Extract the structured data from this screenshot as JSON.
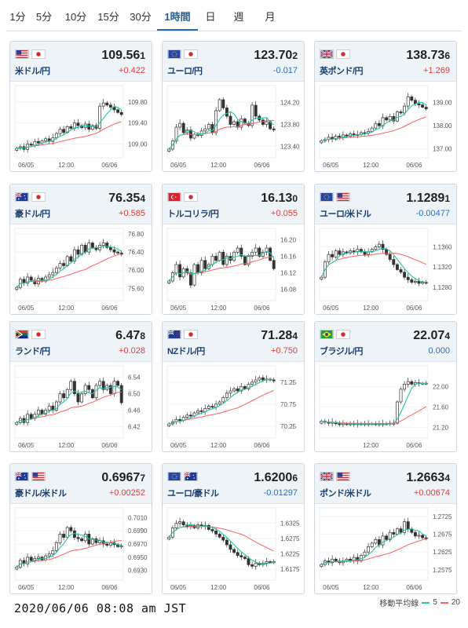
{
  "tabs": [
    {
      "label": "1分",
      "active": false
    },
    {
      "label": "5分",
      "active": false
    },
    {
      "label": "10分",
      "active": false
    },
    {
      "label": "15分",
      "active": false
    },
    {
      "label": "30分",
      "active": false
    },
    {
      "label": "1時間",
      "active": true
    },
    {
      "label": "日",
      "active": false
    },
    {
      "label": "週",
      "active": false
    },
    {
      "label": "月",
      "active": false
    }
  ],
  "colors": {
    "ma5": "#26c4a4",
    "ma20": "#ff5f5f",
    "up": "#e03c3c",
    "down": "#2a6ec4",
    "candle": "#333333"
  },
  "cards": [
    {
      "name": "米ドル/円",
      "flags": [
        "us",
        "jp"
      ],
      "rate_main": "109.56",
      "rate_last": "1",
      "change": "+0.422",
      "dir": "up",
      "chart_data": {
        "type": "candlestick",
        "x_labels": [
          "06/05",
          "12:00",
          "06/06"
        ],
        "y_ticks": [
          "109.80",
          "109.40",
          "109.00"
        ],
        "ylim": [
          108.8,
          110.05
        ],
        "close": [
          108.92,
          108.95,
          108.9,
          109.0,
          108.98,
          109.05,
          109.02,
          109.06,
          109.1,
          109.05,
          109.12,
          109.2,
          109.28,
          109.22,
          109.33,
          109.3,
          109.4,
          109.35,
          109.31,
          109.38,
          109.28,
          109.35,
          109.3,
          109.72,
          109.78,
          109.74,
          109.7,
          109.65,
          109.6,
          109.56
        ]
      }
    },
    {
      "name": "ユーロ/円",
      "flags": [
        "eu",
        "jp"
      ],
      "rate_main": "123.70",
      "rate_last": "2",
      "change": "-0.017",
      "dir": "down",
      "chart_data": {
        "type": "candlestick",
        "x_labels": [
          "06/05",
          "12:00",
          "06/06"
        ],
        "y_ticks": [
          "124.20",
          "123.80",
          "123.40"
        ],
        "ylim": [
          123.25,
          124.45
        ],
        "close": [
          123.35,
          123.5,
          123.75,
          123.82,
          123.65,
          123.7,
          123.55,
          123.62,
          123.6,
          123.68,
          123.72,
          123.8,
          123.65,
          124.05,
          124.25,
          124.1,
          123.95,
          123.8,
          123.85,
          123.75,
          123.9,
          123.82,
          123.78,
          124.15,
          123.95,
          123.88,
          123.8,
          123.85,
          123.72,
          123.7
        ]
      }
    },
    {
      "name": "英ポンド/円",
      "flags": [
        "gb",
        "jp"
      ],
      "rate_main": "138.73",
      "rate_last": "6",
      "change": "+1.269",
      "dir": "up",
      "chart_data": {
        "type": "candlestick",
        "x_labels": [
          "06/05",
          "12:00",
          "06/06"
        ],
        "y_ticks": [
          "139.00",
          "138.00",
          "137.00"
        ],
        "ylim": [
          136.75,
          139.6
        ],
        "close": [
          137.35,
          137.4,
          137.5,
          137.42,
          137.55,
          137.5,
          137.6,
          137.55,
          137.65,
          137.6,
          137.62,
          137.7,
          137.68,
          137.75,
          137.9,
          138.1,
          138.0,
          138.35,
          138.25,
          138.4,
          138.2,
          138.6,
          138.55,
          138.85,
          139.25,
          139.1,
          138.95,
          138.9,
          138.8,
          138.73
        ]
      }
    },
    {
      "name": "豪ドル/円",
      "flags": [
        "au",
        "jp"
      ],
      "rate_main": "76.35",
      "rate_last": "4",
      "change": "+0.585",
      "dir": "up",
      "chart_data": {
        "type": "candlestick",
        "x_labels": [
          "06/05",
          "12:00",
          "06/06"
        ],
        "y_ticks": [
          "76.80",
          "76.40",
          "76.00",
          "75.60"
        ],
        "ylim": [
          75.4,
          76.85
        ],
        "close": [
          75.62,
          75.8,
          75.72,
          75.85,
          75.78,
          75.7,
          75.82,
          75.76,
          75.85,
          75.9,
          75.95,
          76.05,
          76.15,
          76.1,
          76.3,
          76.2,
          76.45,
          76.35,
          76.55,
          76.4,
          76.6,
          76.5,
          76.45,
          76.55,
          76.6,
          76.5,
          76.45,
          76.4,
          76.38,
          76.35
        ]
      }
    },
    {
      "name": "トルコリラ/円",
      "flags": [
        "tr",
        "jp"
      ],
      "rate_main": "16.13",
      "rate_last": "0",
      "change": "+0.055",
      "dir": "up",
      "chart_data": {
        "type": "candlestick",
        "x_labels": [
          "06/05",
          "12:00",
          "06/06"
        ],
        "y_ticks": [
          "16.20",
          "16.16",
          "16.12",
          "16.08"
        ],
        "ylim": [
          16.06,
          16.22
        ],
        "close": [
          16.1,
          16.12,
          16.14,
          16.11,
          16.13,
          16.12,
          16.09,
          16.14,
          16.12,
          16.15,
          16.13,
          16.14,
          16.16,
          16.15,
          16.17,
          16.14,
          16.16,
          16.15,
          16.17,
          16.18,
          16.16,
          16.14,
          16.16,
          16.17,
          16.18,
          16.16,
          16.17,
          16.18,
          16.15,
          16.13
        ]
      }
    },
    {
      "name": "ユーロ/米ドル",
      "flags": [
        "eu",
        "us"
      ],
      "rate_main": "1.1289",
      "rate_last": "1",
      "change": "-0.00477",
      "dir": "down",
      "chart_data": {
        "type": "candlestick",
        "x_labels": [
          "06/05",
          "12:00",
          "06/06"
        ],
        "y_ticks": [
          "1.1360",
          "1.1320",
          "1.1280"
        ],
        "ylim": [
          1.126,
          1.139
        ],
        "close": [
          1.13,
          1.133,
          1.1345,
          1.134,
          1.1352,
          1.1345,
          1.135,
          1.1348,
          1.1352,
          1.135,
          1.1355,
          1.135,
          1.1345,
          1.135,
          1.1355,
          1.136,
          1.1365,
          1.1355,
          1.1345,
          1.1335,
          1.1325,
          1.1315,
          1.131,
          1.13,
          1.1295,
          1.129,
          1.1292,
          1.1288,
          1.129,
          1.1289
        ]
      }
    },
    {
      "name": "ランド/円",
      "flags": [
        "za",
        "jp"
      ],
      "rate_main": "6.47",
      "rate_last": "8",
      "change": "+0.028",
      "dir": "up",
      "chart_data": {
        "type": "candlestick",
        "x_labels": [
          "06/05",
          "12:00",
          "06/06"
        ],
        "y_ticks": [
          "6.54",
          "6.50",
          "6.46",
          "6.42"
        ],
        "ylim": [
          6.4,
          6.56
        ],
        "close": [
          6.43,
          6.44,
          6.43,
          6.45,
          6.44,
          6.45,
          6.46,
          6.45,
          6.46,
          6.47,
          6.46,
          6.48,
          6.5,
          6.49,
          6.51,
          6.53,
          6.5,
          6.48,
          6.5,
          6.52,
          6.51,
          6.49,
          6.52,
          6.53,
          6.51,
          6.52,
          6.5,
          6.53,
          6.52,
          6.478
        ]
      }
    },
    {
      "name": "NZドル/円",
      "flags": [
        "nz",
        "jp"
      ],
      "rate_main": "71.28",
      "rate_last": "4",
      "change": "+0.750",
      "dir": "up",
      "chart_data": {
        "type": "candlestick",
        "x_labels": [
          "06/05",
          "12:00",
          "06/06"
        ],
        "y_ticks": [
          "71.25",
          "70.75",
          "70.25"
        ],
        "ylim": [
          70.05,
          71.55
        ],
        "close": [
          70.3,
          70.35,
          70.4,
          70.38,
          70.45,
          70.5,
          70.48,
          70.55,
          70.6,
          70.58,
          70.65,
          70.7,
          70.68,
          70.75,
          70.8,
          70.9,
          71.0,
          71.05,
          71.1,
          71.05,
          71.15,
          71.1,
          71.2,
          71.25,
          71.3,
          71.35,
          71.3,
          71.32,
          71.3,
          71.28
        ]
      }
    },
    {
      "name": "ブラジル/円",
      "flags": [
        "br",
        "jp"
      ],
      "rate_main": "22.07",
      "rate_last": "4",
      "change": "0.000",
      "dir": "flat",
      "chart_data": {
        "type": "candlestick",
        "x_labels": [
          "12:00",
          "06/06"
        ],
        "y_ticks": [
          "22.00",
          "21.60",
          "21.20"
        ],
        "ylim": [
          21.05,
          22.35
        ],
        "close": [
          21.32,
          21.3,
          21.28,
          21.3,
          21.27,
          21.26,
          21.27,
          21.26,
          21.27,
          21.26,
          21.27,
          21.26,
          21.27,
          21.27,
          21.27,
          21.26,
          21.27,
          21.27,
          21.27,
          21.28,
          21.28,
          21.7,
          21.95,
          22.05,
          22.1,
          22.05,
          22.08,
          22.06,
          22.07,
          22.07
        ]
      }
    },
    {
      "name": "豪ドル/米ドル",
      "flags": [
        "au",
        "us"
      ],
      "rate_main": "0.6967",
      "rate_last": "7",
      "change": "+0.00252",
      "dir": "up",
      "chart_data": {
        "type": "candlestick",
        "x_labels": [
          "06/05",
          "12:00",
          "06/06"
        ],
        "y_ticks": [
          "0.7010",
          "0.6990",
          "0.6970",
          "0.6950",
          "0.6930"
        ],
        "ylim": [
          0.692,
          0.702
        ],
        "close": [
          0.6935,
          0.6945,
          0.694,
          0.695,
          0.6945,
          0.6948,
          0.695,
          0.6946,
          0.6952,
          0.6955,
          0.696,
          0.6972,
          0.6985,
          0.698,
          0.6995,
          0.699,
          0.698,
          0.6978,
          0.6975,
          0.6985,
          0.697,
          0.6978,
          0.6972,
          0.6975,
          0.697,
          0.6968,
          0.6972,
          0.6969,
          0.6966,
          0.6967
        ]
      }
    },
    {
      "name": "ユーロ/豪ドル",
      "flags": [
        "eu",
        "au"
      ],
      "rate_main": "1.6200",
      "rate_last": "6",
      "change": "-0.01297",
      "dir": "down",
      "chart_data": {
        "type": "candlestick",
        "x_labels": [
          "06/05",
          "12:00",
          "06/06"
        ],
        "y_ticks": [
          "1.6325",
          "1.6275",
          "1.6225",
          "1.6175"
        ],
        "ylim": [
          1.615,
          1.6365
        ],
        "close": [
          1.628,
          1.631,
          1.6325,
          1.633,
          1.632,
          1.6315,
          1.6318,
          1.631,
          1.632,
          1.6315,
          1.6318,
          1.6305,
          1.63,
          1.629,
          1.628,
          1.627,
          1.6255,
          1.624,
          1.623,
          1.622,
          1.6215,
          1.621,
          1.619,
          1.6185,
          1.6195,
          1.619,
          1.6195,
          1.62,
          1.6198,
          1.62
        ]
      }
    },
    {
      "name": "ポンド/米ドル",
      "flags": [
        "gb",
        "us"
      ],
      "rate_main": "1.2663",
      "rate_last": "4",
      "change": "+0.00674",
      "dir": "up",
      "chart_data": {
        "type": "candlestick",
        "x_labels": [
          "06/05",
          "12:00",
          "06/06"
        ],
        "y_ticks": [
          "1.2725",
          "1.2675",
          "1.2625",
          "1.2575"
        ],
        "ylim": [
          1.2555,
          1.274
        ],
        "close": [
          1.259,
          1.26,
          1.2595,
          1.2605,
          1.26,
          1.2595,
          1.26,
          1.2605,
          1.26,
          1.261,
          1.26,
          1.2615,
          1.2625,
          1.264,
          1.265,
          1.266,
          1.2645,
          1.267,
          1.266,
          1.268,
          1.2675,
          1.269,
          1.268,
          1.271,
          1.269,
          1.268,
          1.267,
          1.2672,
          1.2665,
          1.2663
        ]
      }
    }
  ],
  "timestamp": "2020/06/06 08:08 am JST",
  "legend": {
    "title": "移動平均線",
    "ma5_label": "5",
    "ma20_label": "20"
  }
}
